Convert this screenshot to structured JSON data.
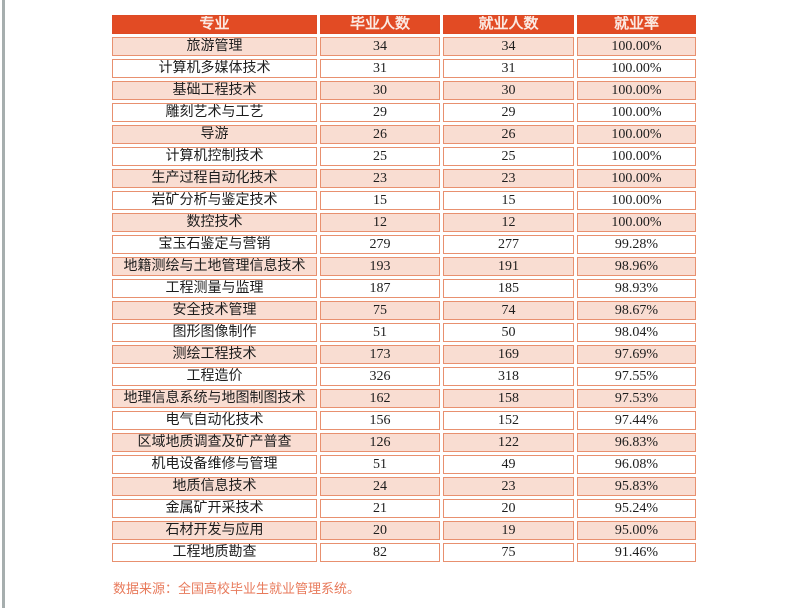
{
  "page": {
    "background": "#ffffff",
    "edge_line_color": "#a6aeae"
  },
  "table": {
    "headers": [
      "专业",
      "毕业人数",
      "就业人数",
      "就业率"
    ],
    "header_bg": "#e24b24",
    "header_text_color": "#fbe9e2",
    "row_alt_bg": "#f9ddd2",
    "border_color": "#e8906f",
    "rows": [
      [
        "旅游管理",
        "34",
        "34",
        "100.00%"
      ],
      [
        "计算机多媒体技术",
        "31",
        "31",
        "100.00%"
      ],
      [
        "基础工程技术",
        "30",
        "30",
        "100.00%"
      ],
      [
        "雕刻艺术与工艺",
        "29",
        "29",
        "100.00%"
      ],
      [
        "导游",
        "26",
        "26",
        "100.00%"
      ],
      [
        "计算机控制技术",
        "25",
        "25",
        "100.00%"
      ],
      [
        "生产过程自动化技术",
        "23",
        "23",
        "100.00%"
      ],
      [
        "岩矿分析与鉴定技术",
        "15",
        "15",
        "100.00%"
      ],
      [
        "数控技术",
        "12",
        "12",
        "100.00%"
      ],
      [
        "宝玉石鉴定与营销",
        "279",
        "277",
        "99.28%"
      ],
      [
        "地籍测绘与土地管理信息技术",
        "193",
        "191",
        "98.96%"
      ],
      [
        "工程测量与监理",
        "187",
        "185",
        "98.93%"
      ],
      [
        "安全技术管理",
        "75",
        "74",
        "98.67%"
      ],
      [
        "图形图像制作",
        "51",
        "50",
        "98.04%"
      ],
      [
        "测绘工程技术",
        "173",
        "169",
        "97.69%"
      ],
      [
        "工程造价",
        "326",
        "318",
        "97.55%"
      ],
      [
        "地理信息系统与地图制图技术",
        "162",
        "158",
        "97.53%"
      ],
      [
        "电气自动化技术",
        "156",
        "152",
        "97.44%"
      ],
      [
        "区域地质调查及矿产普查",
        "126",
        "122",
        "96.83%"
      ],
      [
        "机电设备维修与管理",
        "51",
        "49",
        "96.08%"
      ],
      [
        "地质信息技术",
        "24",
        "23",
        "95.83%"
      ],
      [
        "金属矿开采技术",
        "21",
        "20",
        "95.24%"
      ],
      [
        "石材开发与应用",
        "20",
        "19",
        "95.00%"
      ],
      [
        "工程地质勘查",
        "82",
        "75",
        "91.46%"
      ]
    ]
  },
  "footer": {
    "source_note": "数据来源：全国高校毕业生就业管理系统。",
    "text_color": "#e87a5b"
  }
}
